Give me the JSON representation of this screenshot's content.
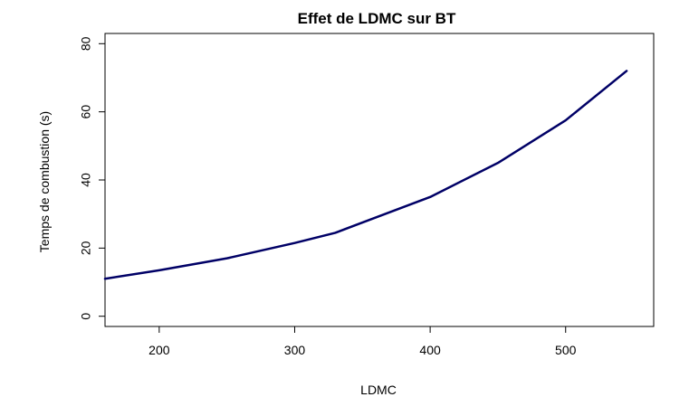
{
  "chart_data": {
    "type": "line",
    "title": "Effet de LDMC sur BT",
    "xlabel": "LDMC",
    "ylabel": "Temps de combustion (s)",
    "xlim": [
      160,
      565
    ],
    "ylim": [
      -3,
      83
    ],
    "xticks": [
      200,
      300,
      400,
      500
    ],
    "yticks": [
      0,
      20,
      40,
      60,
      80
    ],
    "grid": false,
    "line_color": "#000066",
    "series": [
      {
        "x": [
          160,
          200,
          250,
          300,
          330,
          350,
          400,
          450,
          500,
          545
        ],
        "values": [
          11,
          13.5,
          17,
          21.5,
          24.5,
          27.5,
          35,
          45,
          57.5,
          72
        ]
      }
    ]
  }
}
